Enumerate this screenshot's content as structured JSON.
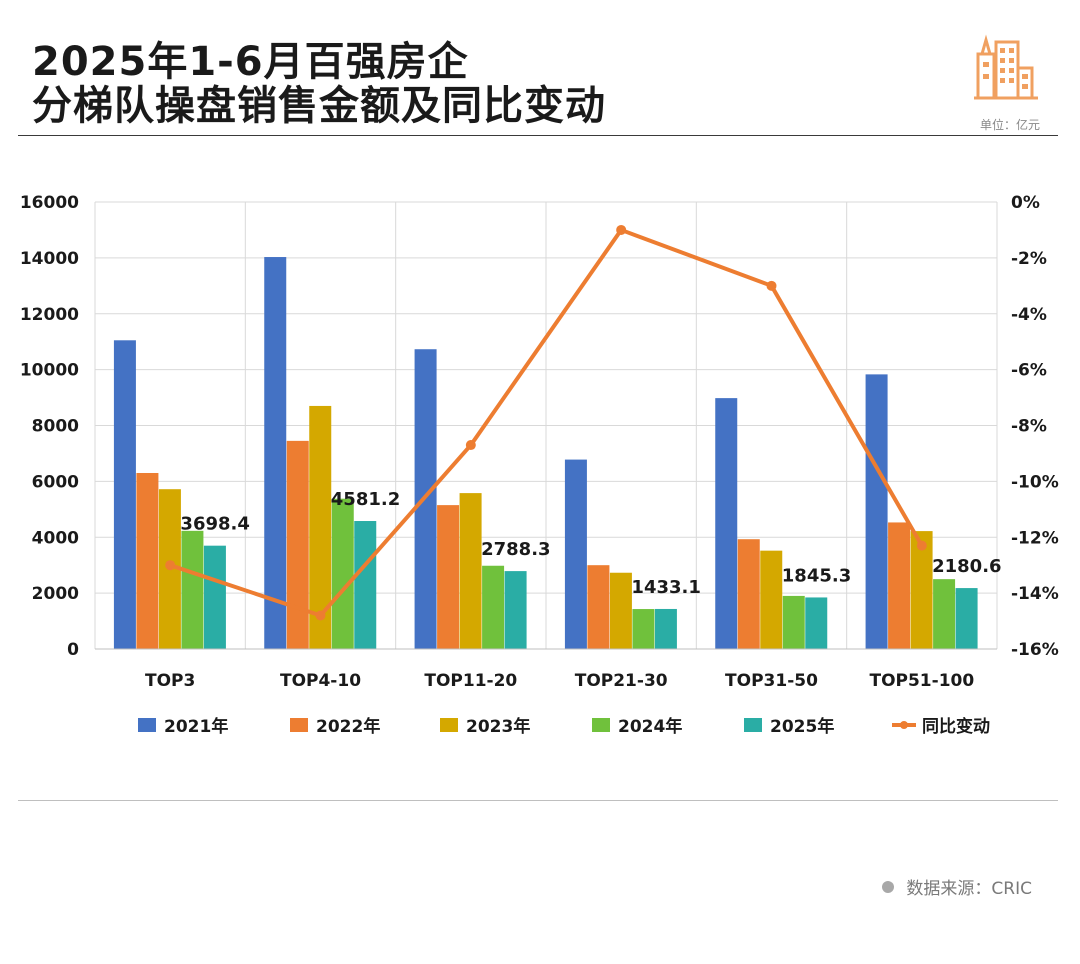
{
  "header": {
    "title_line1": "2025年1-6月百强房企",
    "title_line2": "分梯队操盘销售金额及同比变动",
    "unit": "单位：亿元"
  },
  "footer": {
    "source": "数据来源：CRIC"
  },
  "colors": {
    "series": [
      "#4472C4",
      "#ED7D31",
      "#D4A800",
      "#70C13C",
      "#2AADA5"
    ],
    "line": "#ED7D31",
    "logo": "#F0A060"
  },
  "chart_data": {
    "type": "bar",
    "categories": [
      "TOP3",
      "TOP4-10",
      "TOP11-20",
      "TOP21-30",
      "TOP31-50",
      "TOP51-100"
    ],
    "series": [
      {
        "name": "2021年",
        "values": [
          11050,
          14030,
          10730,
          6780,
          8980,
          9830
        ]
      },
      {
        "name": "2022年",
        "values": [
          6300,
          7450,
          5150,
          3000,
          3930,
          4530
        ]
      },
      {
        "name": "2023年",
        "values": [
          5720,
          8700,
          5580,
          2730,
          3520,
          4220
        ]
      },
      {
        "name": "2024年",
        "values": [
          4230,
          5380,
          2980,
          1430,
          1900,
          2500
        ]
      },
      {
        "name": "2025年",
        "values": [
          3698.4,
          4581.2,
          2788.3,
          1433.1,
          1845.3,
          2180.6
        ]
      }
    ],
    "line_series": {
      "name": "同比变动",
      "values": [
        -13.0,
        -14.8,
        -8.7,
        -1.0,
        -3.0,
        -12.3
      ]
    },
    "data_labels": [
      "3698.4",
      "4581.2",
      "2788.3",
      "1433.1",
      "1845.3",
      "2180.6"
    ],
    "y_left": {
      "min": 0,
      "max": 16000,
      "ticks": [
        "0",
        "2000",
        "4000",
        "6000",
        "8000",
        "10000",
        "12000",
        "14000",
        "16000"
      ]
    },
    "y_right": {
      "min": -16,
      "max": 0,
      "ticks": [
        "-16%",
        "-14%",
        "-12%",
        "-10%",
        "-8%",
        "-6%",
        "-4%",
        "-2%",
        "0%"
      ]
    },
    "grid": true,
    "legend_position": "bottom"
  }
}
